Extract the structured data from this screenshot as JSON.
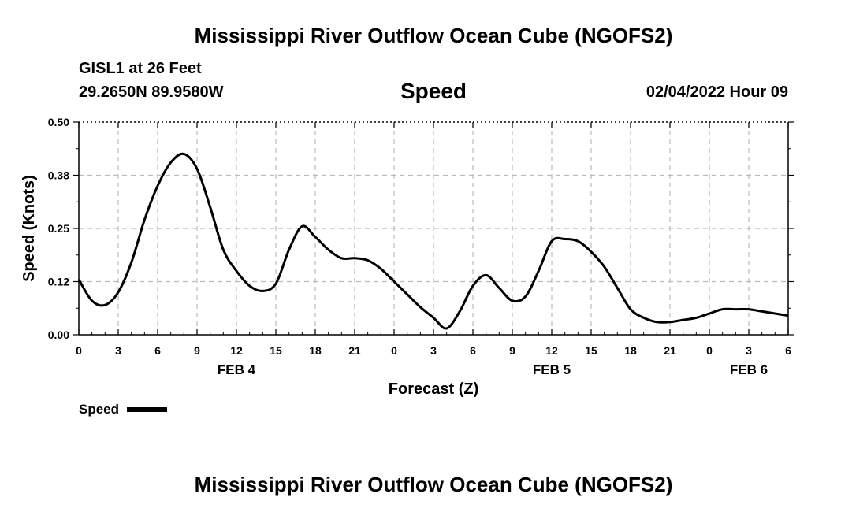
{
  "header": {
    "title": "Mississippi River Outflow Ocean Cube (NGOFS2)",
    "station": "GISL1 at 26 Feet",
    "coordinates": "29.2650N  89.9580W",
    "panel_title": "Speed",
    "timestamp": "02/04/2022 Hour 09"
  },
  "footer": {
    "title": "Mississippi River Outflow Ocean Cube (NGOFS2)"
  },
  "chart_data": {
    "type": "line",
    "title": "Speed",
    "xlabel": "Forecast (Z)",
    "ylabel": "Speed (Knots)",
    "ylim": [
      0,
      0.5
    ],
    "xlim": [
      0,
      54
    ],
    "y_ticks": [
      "0.00",
      "0.12",
      "0.25",
      "0.38",
      "0.50"
    ],
    "x_ticks": [
      "0",
      "3",
      "6",
      "9",
      "12",
      "15",
      "18",
      "21",
      "0",
      "3",
      "6",
      "9",
      "12",
      "15",
      "18",
      "21",
      "0",
      "3",
      "6"
    ],
    "day_labels": [
      {
        "label": "FEB 4",
        "hour": 12
      },
      {
        "label": "FEB 5",
        "hour": 36
      },
      {
        "label": "FEB 6",
        "hour": 51
      }
    ],
    "grid": true,
    "legend_position": "bottom-left",
    "series": [
      {
        "name": "Speed",
        "color": "#000000",
        "x": [
          0,
          1,
          2,
          3,
          4,
          5,
          6,
          7,
          8,
          9,
          10,
          11,
          12,
          13,
          14,
          15,
          16,
          17,
          18,
          19,
          20,
          21,
          22,
          23,
          24,
          25,
          26,
          27,
          28,
          29,
          30,
          31,
          32,
          33,
          34,
          35,
          36,
          37,
          38,
          39,
          40,
          41,
          42,
          43,
          44,
          45,
          46,
          47,
          48,
          49,
          50,
          51,
          52,
          53,
          54
        ],
        "values": [
          0.13,
          0.08,
          0.07,
          0.1,
          0.17,
          0.27,
          0.35,
          0.405,
          0.425,
          0.39,
          0.3,
          0.2,
          0.15,
          0.115,
          0.103,
          0.12,
          0.2,
          0.255,
          0.23,
          0.2,
          0.18,
          0.18,
          0.175,
          0.155,
          0.125,
          0.095,
          0.065,
          0.04,
          0.015,
          0.055,
          0.115,
          0.14,
          0.11,
          0.08,
          0.09,
          0.15,
          0.22,
          0.225,
          0.22,
          0.195,
          0.16,
          0.11,
          0.06,
          0.04,
          0.03,
          0.03,
          0.035,
          0.04,
          0.05,
          0.06,
          0.06,
          0.06,
          0.055,
          0.05,
          0.045
        ]
      }
    ]
  }
}
